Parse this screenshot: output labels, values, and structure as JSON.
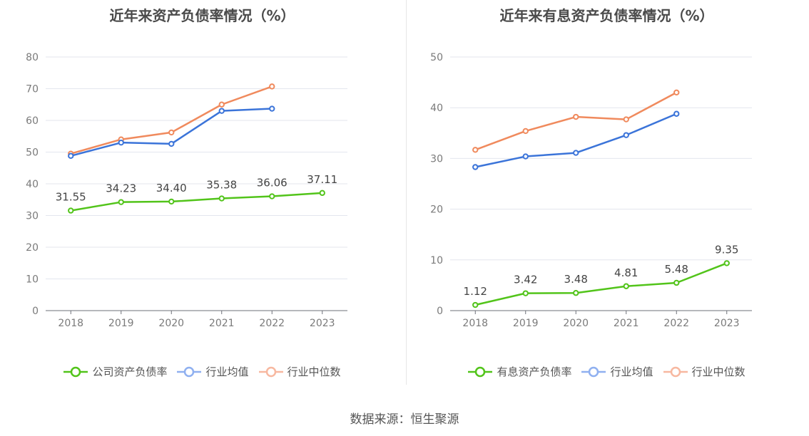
{
  "chart_data": [
    {
      "type": "line",
      "title": "近年来资产负债率情况（%）",
      "categories": [
        "2018",
        "2019",
        "2020",
        "2021",
        "2022",
        "2023"
      ],
      "ylim": [
        0,
        80
      ],
      "yticks": [
        "0",
        "10",
        "20",
        "30",
        "40",
        "50",
        "60",
        "70",
        "80"
      ],
      "grid": true,
      "legend_position": "bottom",
      "series": [
        {
          "name": "公司资产负债率",
          "color": "#52c41a",
          "values": [
            31.55,
            34.23,
            34.4,
            35.38,
            36.06,
            37.11
          ],
          "labels": [
            "31.55",
            "34.23",
            "34.40",
            "35.38",
            "36.06",
            "37.11"
          ]
        },
        {
          "name": "行业均值",
          "color": "#3b74d9",
          "values": [
            48.8,
            53.0,
            52.6,
            63.0,
            63.7,
            null
          ]
        },
        {
          "name": "行业中位数",
          "color": "#f08a5d",
          "values": [
            49.5,
            54.0,
            56.2,
            65.0,
            70.7,
            null
          ]
        }
      ]
    },
    {
      "type": "line",
      "title": "近年来有息资产负债率情况（%）",
      "categories": [
        "2018",
        "2019",
        "2020",
        "2021",
        "2022",
        "2023"
      ],
      "ylim": [
        0,
        50
      ],
      "yticks": [
        "0",
        "10",
        "20",
        "30",
        "40",
        "50"
      ],
      "grid": true,
      "legend_position": "bottom",
      "series": [
        {
          "name": "有息资产负债率",
          "color": "#52c41a",
          "values": [
            1.12,
            3.42,
            3.48,
            4.81,
            5.48,
            9.35
          ],
          "labels": [
            "1.12",
            "3.42",
            "3.48",
            "4.81",
            "5.48",
            "9.35"
          ]
        },
        {
          "name": "行业均值",
          "color": "#3b74d9",
          "values": [
            28.3,
            30.4,
            31.1,
            34.6,
            38.8,
            null
          ]
        },
        {
          "name": "行业中位数",
          "color": "#f08a5d",
          "values": [
            31.7,
            35.4,
            38.2,
            37.7,
            43.0,
            null
          ]
        }
      ]
    }
  ],
  "legend_colors": {
    "green_icon": "#52c41a",
    "blue_icon": "#8fb0f0",
    "orange_icon": "#f7b8a0"
  },
  "footer": {
    "source": "数据来源：恒生聚源"
  }
}
